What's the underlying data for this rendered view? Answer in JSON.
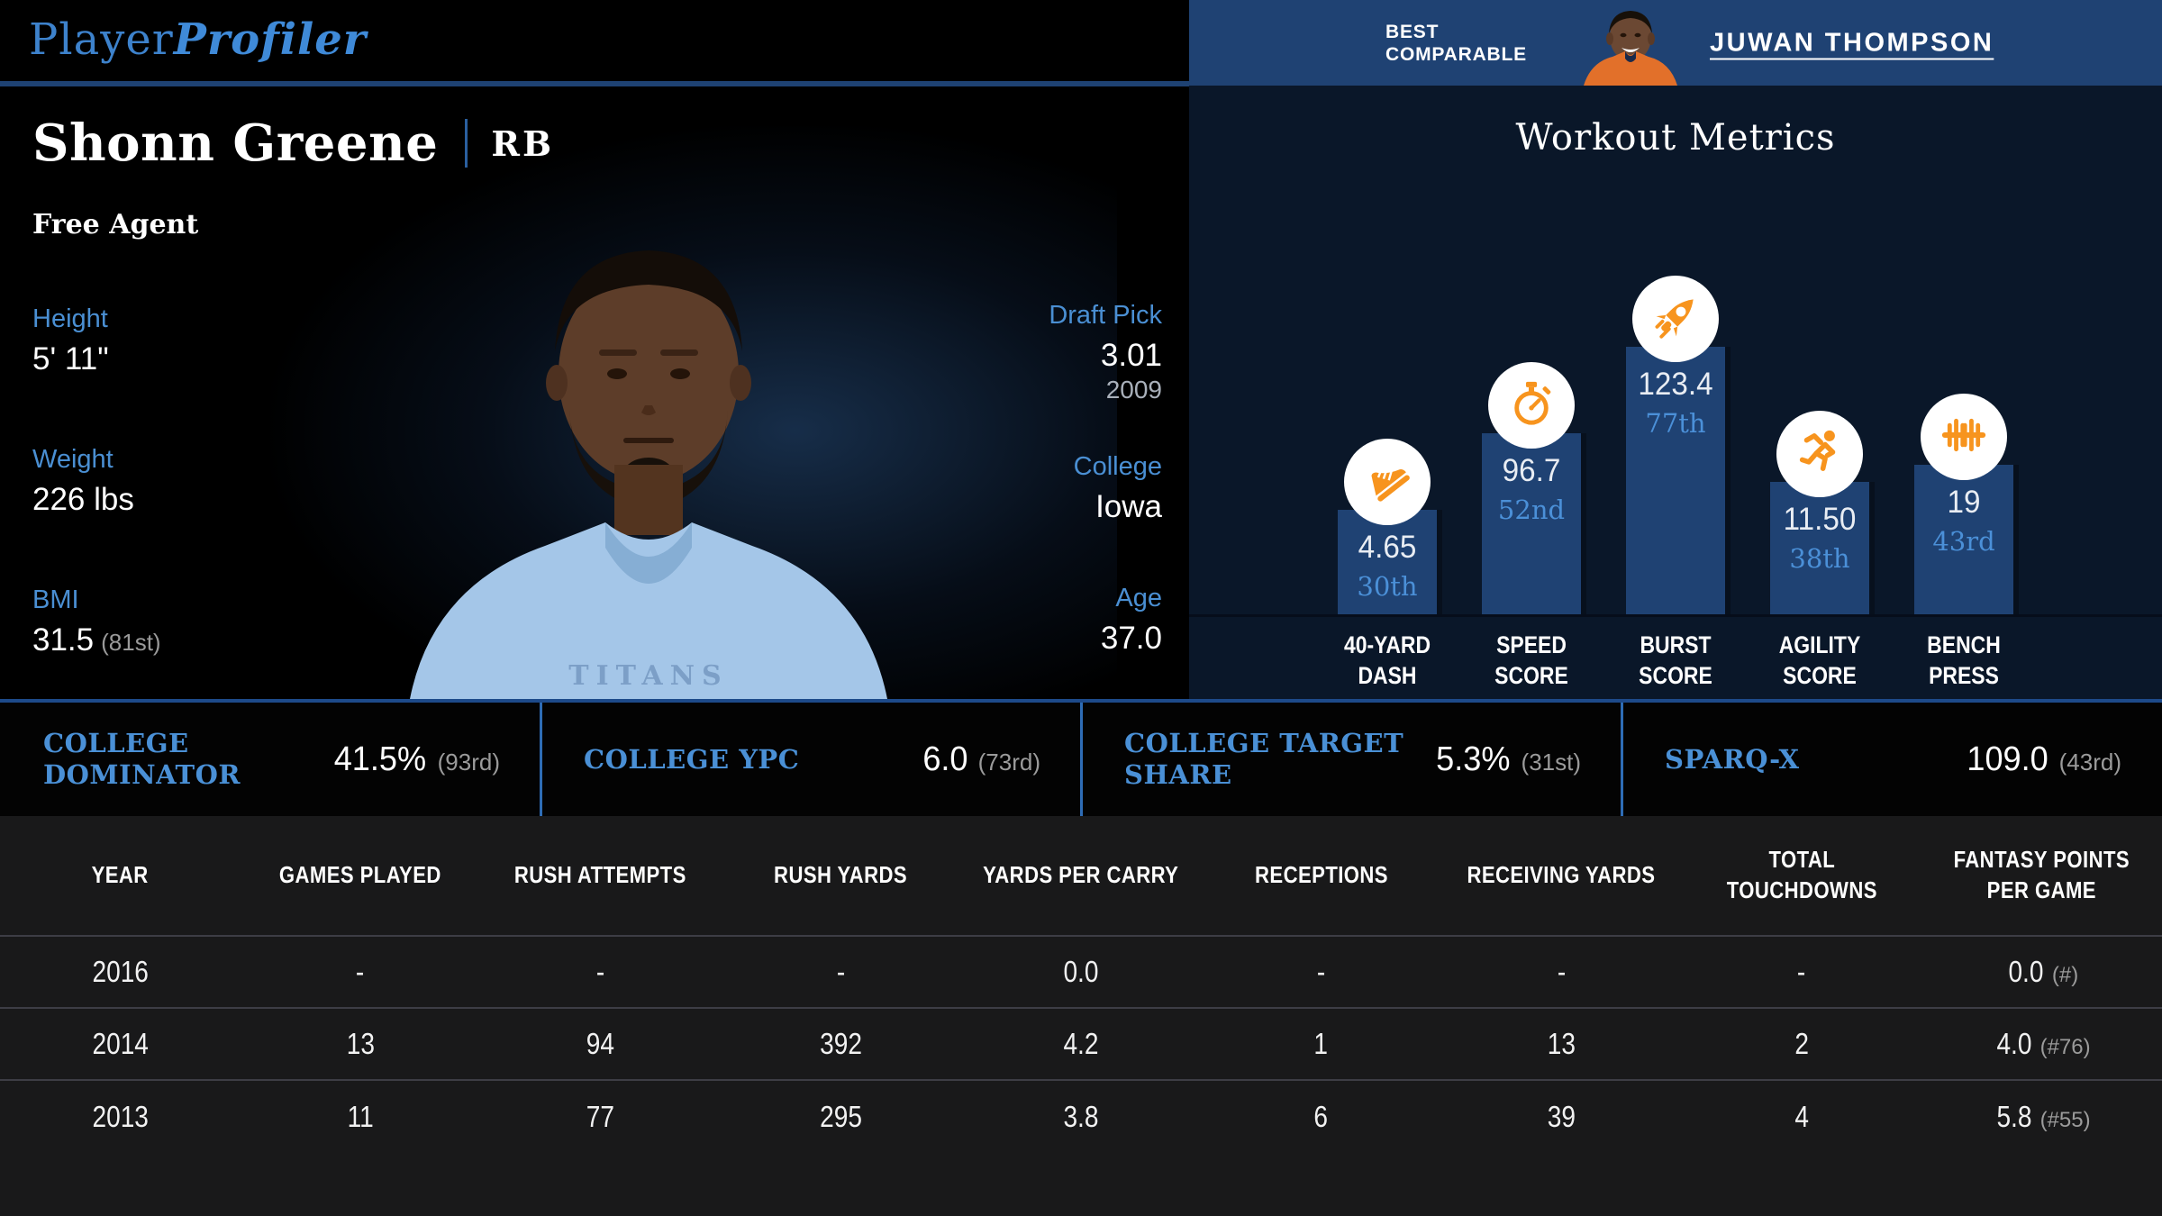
{
  "brand": {
    "logo_regular": "Player",
    "logo_italic": "Profiler"
  },
  "player": {
    "name": "Shonn Greene",
    "position": "RB",
    "team_status": "Free Agent"
  },
  "left_stats": [
    {
      "label": "Height",
      "value": "5' 11\""
    },
    {
      "label": "Weight",
      "value": "226 lbs"
    },
    {
      "label": "BMI",
      "value": "31.5",
      "rank": "(81st)"
    }
  ],
  "right_stats": [
    {
      "label": "Draft Pick",
      "value": "3.01",
      "sub": "2009"
    },
    {
      "label": "College",
      "value": "Iowa"
    },
    {
      "label": "Age",
      "value": "37.0"
    }
  ],
  "best_comparable": {
    "label": "BEST\nCOMPARABLE",
    "player_name": "JUWAN THOMPSON"
  },
  "workout": {
    "title": "Workout Metrics"
  },
  "chart_data": {
    "type": "bar",
    "title": "Workout Metrics",
    "categories": [
      "40-Yard Dash",
      "Speed Score",
      "Burst Score",
      "Agility Score",
      "Bench Press"
    ],
    "category_label_lines": [
      [
        "40-YARD",
        "DASH"
      ],
      [
        "SPEED",
        "SCORE"
      ],
      [
        "BURST",
        "SCORE"
      ],
      [
        "AGILITY",
        "SCORE"
      ],
      [
        "BENCH",
        "PRESS"
      ]
    ],
    "values": [
      4.65,
      96.7,
      123.4,
      11.5,
      19
    ],
    "value_labels": [
      "4.65",
      "96.7",
      "123.4",
      "11.50",
      "19"
    ],
    "percentiles": [
      30,
      52,
      77,
      38,
      43
    ],
    "percentile_labels": [
      "30th",
      "52nd",
      "77th",
      "38th",
      "43rd"
    ],
    "icons": [
      "shoe-icon",
      "stopwatch-icon",
      "rocket-icon",
      "runner-icon",
      "barbell-icon"
    ],
    "bar_color": "#1f4273",
    "accent_orange": "#f7941e",
    "percentile_color": "#4b90d8",
    "note": "bar heights proportional to percentile, baseline at axis"
  },
  "college_band": {
    "items": [
      {
        "label": "COLLEGE DOMINATOR",
        "value": "41.5%",
        "rank": "(93rd)"
      },
      {
        "label": "COLLEGE YPC",
        "value": "6.0",
        "rank": "(73rd)"
      },
      {
        "label": "COLLEGE TARGET SHARE",
        "value": "5.3%",
        "rank": "(31st)"
      },
      {
        "label": "SPARQ-X",
        "value": "109.0",
        "rank": "(43rd)"
      }
    ]
  },
  "table": {
    "headers": [
      "YEAR",
      "GAMES PLAYED",
      "RUSH ATTEMPTS",
      "RUSH YARDS",
      "YARDS PER CARRY",
      "RECEPTIONS",
      "RECEIVING YARDS",
      "TOTAL TOUCHDOWNS",
      "FANTASY POINTS PER GAME"
    ],
    "rows": [
      {
        "cells": [
          "2016",
          "-",
          "-",
          "-",
          "0.0",
          "-",
          "-",
          "-"
        ],
        "fantasy_value": "0.0",
        "fantasy_rank": "(#)"
      },
      {
        "cells": [
          "2014",
          "13",
          "94",
          "392",
          "4.2",
          "1",
          "13",
          "2"
        ],
        "fantasy_value": "4.0",
        "fantasy_rank": "(#76)"
      },
      {
        "cells": [
          "2013",
          "11",
          "77",
          "295",
          "3.8",
          "6",
          "39",
          "4"
        ],
        "fantasy_value": "5.8",
        "fantasy_rank": "(#55)"
      }
    ]
  },
  "colors": {
    "panel_navy": "#0a1729",
    "band_blue": "#1f4273",
    "line_blue": "#1d4a8a",
    "label_blue": "#4a8fd3",
    "table_bg": "#19191a"
  }
}
